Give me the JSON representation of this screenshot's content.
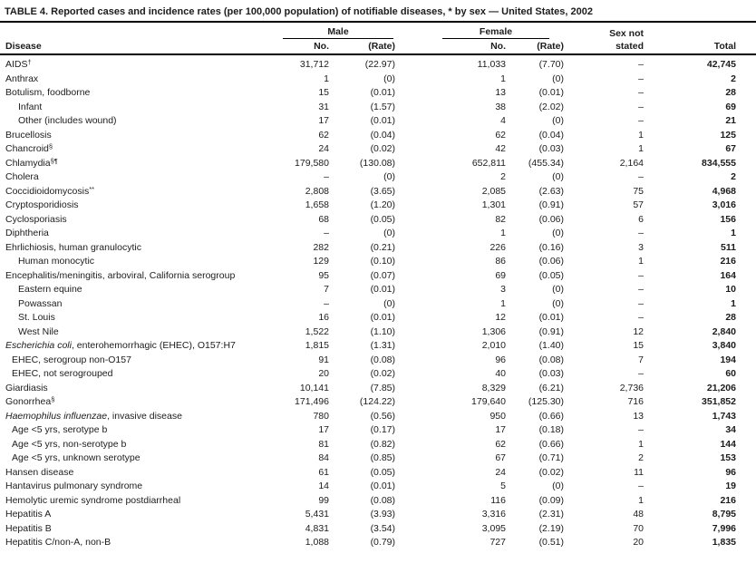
{
  "title": "TABLE 4. Reported cases and incidence rates (per 100,000 population) of notifiable diseases, * by sex — United States, 2002",
  "headers": {
    "disease": "Disease",
    "male": "Male",
    "female": "Female",
    "no": "No.",
    "rate": "(Rate)",
    "sex_not_stated_line1": "Sex not",
    "sex_not_stated_line2": "stated",
    "total": "Total"
  },
  "table": {
    "rows": [
      {
        "italic": "",
        "label": "AIDS",
        "sup": "†",
        "indent": 0,
        "male_no": "31,712",
        "male_rate": "(22.97)",
        "female_no": "11,033",
        "female_rate": "(7.70)",
        "sex_not_stated": "–",
        "total": "42,745"
      },
      {
        "italic": "",
        "label": "Anthrax",
        "sup": "",
        "indent": 0,
        "male_no": "1",
        "male_rate": "(0)",
        "female_no": "1",
        "female_rate": "(0)",
        "sex_not_stated": "–",
        "total": "2"
      },
      {
        "italic": "",
        "label": "Botulism, foodborne",
        "sup": "",
        "indent": 0,
        "male_no": "15",
        "male_rate": "(0.01)",
        "female_no": "13",
        "female_rate": "(0.01)",
        "sex_not_stated": "–",
        "total": "28"
      },
      {
        "italic": "",
        "label": "Infant",
        "sup": "",
        "indent": 2,
        "male_no": "31",
        "male_rate": "(1.57)",
        "female_no": "38",
        "female_rate": "(2.02)",
        "sex_not_stated": "–",
        "total": "69"
      },
      {
        "italic": "",
        "label": "Other (includes wound)",
        "sup": "",
        "indent": 2,
        "male_no": "17",
        "male_rate": "(0.01)",
        "female_no": "4",
        "female_rate": "(0)",
        "sex_not_stated": "–",
        "total": "21"
      },
      {
        "italic": "",
        "label": "Brucellosis",
        "sup": "",
        "indent": 0,
        "male_no": "62",
        "male_rate": "(0.04)",
        "female_no": "62",
        "female_rate": "(0.04)",
        "sex_not_stated": "1",
        "total": "125"
      },
      {
        "italic": "",
        "label": "Chancroid",
        "sup": "§",
        "indent": 0,
        "male_no": "24",
        "male_rate": "(0.02)",
        "female_no": "42",
        "female_rate": "(0.03)",
        "sex_not_stated": "1",
        "total": "67"
      },
      {
        "italic": "",
        "label": "Chlamydia",
        "sup": "§¶",
        "indent": 0,
        "male_no": "179,580",
        "male_rate": "(130.08)",
        "female_no": "652,811",
        "female_rate": "(455.34)",
        "sex_not_stated": "2,164",
        "total": "834,555"
      },
      {
        "italic": "",
        "label": "Cholera",
        "sup": "",
        "indent": 0,
        "male_no": "–",
        "male_rate": "(0)",
        "female_no": "2",
        "female_rate": "(0)",
        "sex_not_stated": "–",
        "total": "2"
      },
      {
        "italic": "",
        "label": "Coccidioidomycosis",
        "sup": "**",
        "indent": 0,
        "male_no": "2,808",
        "male_rate": "(3.65)",
        "female_no": "2,085",
        "female_rate": "(2.63)",
        "sex_not_stated": "75",
        "total": "4,968"
      },
      {
        "italic": "",
        "label": "Cryptosporidiosis",
        "sup": "",
        "indent": 0,
        "male_no": "1,658",
        "male_rate": "(1.20)",
        "female_no": "1,301",
        "female_rate": "(0.91)",
        "sex_not_stated": "57",
        "total": "3,016"
      },
      {
        "italic": "",
        "label": "Cyclosporiasis",
        "sup": "",
        "indent": 0,
        "male_no": "68",
        "male_rate": "(0.05)",
        "female_no": "82",
        "female_rate": "(0.06)",
        "sex_not_stated": "6",
        "total": "156"
      },
      {
        "italic": "",
        "label": "Diphtheria",
        "sup": "",
        "indent": 0,
        "male_no": "–",
        "male_rate": "(0)",
        "female_no": "1",
        "female_rate": "(0)",
        "sex_not_stated": "–",
        "total": "1"
      },
      {
        "italic": "",
        "label": "Ehrlichiosis, human granulocytic",
        "sup": "",
        "indent": 0,
        "male_no": "282",
        "male_rate": "(0.21)",
        "female_no": "226",
        "female_rate": "(0.16)",
        "sex_not_stated": "3",
        "total": "511"
      },
      {
        "italic": "",
        "label": "Human monocytic",
        "sup": "",
        "indent": 2,
        "male_no": "129",
        "male_rate": "(0.10)",
        "female_no": "86",
        "female_rate": "(0.06)",
        "sex_not_stated": "1",
        "total": "216"
      },
      {
        "italic": "",
        "label": "Encephalitis/meningitis, arboviral, California serogroup",
        "sup": "",
        "indent": 0,
        "male_no": "95",
        "male_rate": "(0.07)",
        "female_no": "69",
        "female_rate": "(0.05)",
        "sex_not_stated": "–",
        "total": "164"
      },
      {
        "italic": "",
        "label": "Eastern equine",
        "sup": "",
        "indent": 2,
        "male_no": "7",
        "male_rate": "(0.01)",
        "female_no": "3",
        "female_rate": "(0)",
        "sex_not_stated": "–",
        "total": "10"
      },
      {
        "italic": "",
        "label": "Powassan",
        "sup": "",
        "indent": 2,
        "male_no": "–",
        "male_rate": "(0)",
        "female_no": "1",
        "female_rate": "(0)",
        "sex_not_stated": "–",
        "total": "1"
      },
      {
        "italic": "",
        "label": "St. Louis",
        "sup": "",
        "indent": 2,
        "male_no": "16",
        "male_rate": "(0.01)",
        "female_no": "12",
        "female_rate": "(0.01)",
        "sex_not_stated": "–",
        "total": "28"
      },
      {
        "italic": "",
        "label": "West Nile",
        "sup": "",
        "indent": 2,
        "male_no": "1,522",
        "male_rate": "(1.10)",
        "female_no": "1,306",
        "female_rate": "(0.91)",
        "sex_not_stated": "12",
        "total": "2,840"
      },
      {
        "italic": "Escherichia coli",
        "label": ", enterohemorrhagic (EHEC), O157:H7",
        "sup": "",
        "indent": 0,
        "male_no": "1,815",
        "male_rate": "(1.31)",
        "female_no": "2,010",
        "female_rate": "(1.40)",
        "sex_not_stated": "15",
        "total": "3,840"
      },
      {
        "italic": "",
        "label": "EHEC, serogroup non-O157",
        "sup": "",
        "indent": 1,
        "male_no": "91",
        "male_rate": "(0.08)",
        "female_no": "96",
        "female_rate": "(0.08)",
        "sex_not_stated": "7",
        "total": "194"
      },
      {
        "italic": "",
        "label": "EHEC, not serogrouped",
        "sup": "",
        "indent": 1,
        "male_no": "20",
        "male_rate": "(0.02)",
        "female_no": "40",
        "female_rate": "(0.03)",
        "sex_not_stated": "–",
        "total": "60"
      },
      {
        "italic": "",
        "label": "Giardiasis",
        "sup": "",
        "indent": 0,
        "male_no": "10,141",
        "male_rate": "(7.85)",
        "female_no": "8,329",
        "female_rate": "(6.21)",
        "sex_not_stated": "2,736",
        "total": "21,206"
      },
      {
        "italic": "",
        "label": "Gonorrhea",
        "sup": "§",
        "indent": 0,
        "male_no": "171,496",
        "male_rate": "(124.22)",
        "female_no": "179,640",
        "female_rate": "(125.30)",
        "sex_not_stated": "716",
        "total": "351,852"
      },
      {
        "italic": "Haemophilus influenzae",
        "label": ", invasive disease",
        "sup": "",
        "indent": 0,
        "male_no": "780",
        "male_rate": "(0.56)",
        "female_no": "950",
        "female_rate": "(0.66)",
        "sex_not_stated": "13",
        "total": "1,743"
      },
      {
        "italic": "",
        "label": "Age <5 yrs, serotype b",
        "sup": "",
        "indent": 1,
        "male_no": "17",
        "male_rate": "(0.17)",
        "female_no": "17",
        "female_rate": "(0.18)",
        "sex_not_stated": "–",
        "total": "34"
      },
      {
        "italic": "",
        "label": "Age <5 yrs, non-serotype b",
        "sup": "",
        "indent": 1,
        "male_no": "81",
        "male_rate": "(0.82)",
        "female_no": "62",
        "female_rate": "(0.66)",
        "sex_not_stated": "1",
        "total": "144"
      },
      {
        "italic": "",
        "label": "Age <5 yrs, unknown serotype",
        "sup": "",
        "indent": 1,
        "male_no": "84",
        "male_rate": "(0.85)",
        "female_no": "67",
        "female_rate": "(0.71)",
        "sex_not_stated": "2",
        "total": "153"
      },
      {
        "italic": "",
        "label": "Hansen disease",
        "sup": "",
        "indent": 0,
        "male_no": "61",
        "male_rate": "(0.05)",
        "female_no": "24",
        "female_rate": "(0.02)",
        "sex_not_stated": "11",
        "total": "96"
      },
      {
        "italic": "",
        "label": "Hantavirus pulmonary syndrome",
        "sup": "",
        "indent": 0,
        "male_no": "14",
        "male_rate": "(0.01)",
        "female_no": "5",
        "female_rate": "(0)",
        "sex_not_stated": "–",
        "total": "19"
      },
      {
        "italic": "",
        "label": "Hemolytic uremic syndrome postdiarrheal",
        "sup": "",
        "indent": 0,
        "male_no": "99",
        "male_rate": "(0.08)",
        "female_no": "116",
        "female_rate": "(0.09)",
        "sex_not_stated": "1",
        "total": "216"
      },
      {
        "italic": "",
        "label": "Hepatitis A",
        "sup": "",
        "indent": 0,
        "male_no": "5,431",
        "male_rate": "(3.93)",
        "female_no": "3,316",
        "female_rate": "(2.31)",
        "sex_not_stated": "48",
        "total": "8,795"
      },
      {
        "italic": "",
        "label": "Hepatitis B",
        "sup": "",
        "indent": 0,
        "male_no": "4,831",
        "male_rate": "(3.54)",
        "female_no": "3,095",
        "female_rate": "(2.19)",
        "sex_not_stated": "70",
        "total": "7,996"
      },
      {
        "italic": "",
        "label": "Hepatitis C/non-A, non-B",
        "sup": "",
        "indent": 0,
        "male_no": "1,088",
        "male_rate": "(0.79)",
        "female_no": "727",
        "female_rate": "(0.51)",
        "sex_not_stated": "20",
        "total": "1,835"
      }
    ]
  }
}
